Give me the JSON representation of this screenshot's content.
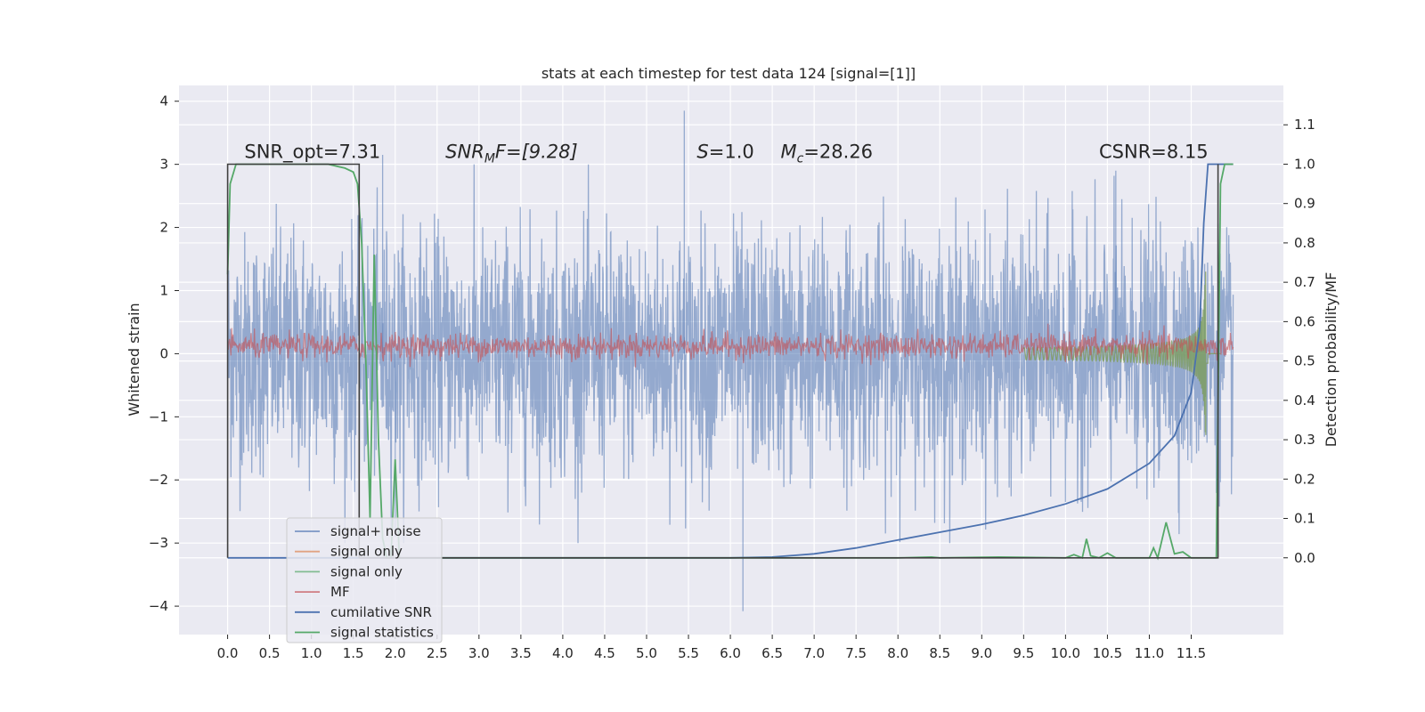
{
  "chart_data": {
    "type": "line",
    "title": "stats at each timestep for test data 124 [signal=[1]]",
    "xlabel": "",
    "ylabel": "Whitened strain",
    "ylabel_right": "Detection probability/MF",
    "xlim": [
      -0.58,
      12.6
    ],
    "ylim": [
      -4.45,
      4.25
    ],
    "ylim_right": [
      -0.195,
      1.2
    ],
    "x_ticks": [
      "0.0",
      "0.5",
      "1.0",
      "1.5",
      "2.0",
      "2.5",
      "3.0",
      "3.5",
      "4.0",
      "4.5",
      "5.0",
      "5.5",
      "6.0",
      "6.5",
      "7.0",
      "7.5",
      "8.0",
      "8.5",
      "9.0",
      "9.5",
      "10.0",
      "10.5",
      "11.0",
      "11.5"
    ],
    "y_ticks_left": [
      "4",
      "3",
      "2",
      "1",
      "0",
      "−1",
      "−2",
      "−3",
      "−4"
    ],
    "y_ticks_right": [
      "1.1",
      "1.0",
      "0.9",
      "0.8",
      "0.7",
      "0.6",
      "0.5",
      "0.4",
      "0.3",
      "0.2",
      "0.1",
      "0.0"
    ],
    "grid": true,
    "legend_position": "lower-left",
    "annotations": {
      "snr_opt": {
        "text": "SNR_opt=7.31",
        "x": 0.2,
        "y": 3.1
      },
      "snr_mf_prefix": "SNR",
      "snr_mf_sub": "M",
      "snr_mf_suffix": "F=[9.28]",
      "snr_mf_pos": {
        "x": 2.6,
        "y": 3.1
      },
      "s_var": "S",
      "s_value": "=1.0",
      "s_pos": {
        "x": 5.6,
        "y": 3.1
      },
      "mc_var": "M",
      "mc_sub": "c",
      "mc_value": "=28.26",
      "mc_pos": {
        "x": 6.6,
        "y": 3.1
      },
      "csnr": {
        "text": "CSNR=8.15",
        "x": 10.4,
        "y": 3.1
      }
    },
    "series": [
      {
        "name": "signal+ noise",
        "axis": "left",
        "color": "#4c72b0",
        "opacity": 0.55,
        "style": "noise",
        "x_range": [
          0,
          12.0
        ],
        "peaks": [
          [
            5.45,
            3.85
          ],
          [
            6.15,
            -4.08
          ],
          [
            1.85,
            3.15
          ],
          [
            2.0,
            -2.9
          ],
          [
            10.6,
            2.9
          ]
        ]
      },
      {
        "name": "signal only",
        "axis": "left",
        "color": "#dd8452",
        "opacity": 0.6,
        "style": "chirp"
      },
      {
        "name": "signal only",
        "axis": "left",
        "color": "#55a868",
        "opacity": 0.6,
        "style": "chirp"
      },
      {
        "name": "MF",
        "axis": "left",
        "color": "#c44e52",
        "opacity": 0.6,
        "style": "band",
        "x_range": [
          0,
          12.0
        ],
        "center": 0.12,
        "amplitude": 0.2
      },
      {
        "name": "cumilative SNR",
        "axis": "right",
        "color": "#4c72b0",
        "x": [
          0,
          6.0,
          6.5,
          7.0,
          7.5,
          8.0,
          8.5,
          9.0,
          9.5,
          10.0,
          10.5,
          11.0,
          11.3,
          11.5,
          11.6,
          11.65,
          11.7,
          12.0
        ],
        "values": [
          0,
          0,
          0.002,
          0.01,
          0.025,
          0.045,
          0.065,
          0.085,
          0.108,
          0.137,
          0.175,
          0.24,
          0.31,
          0.42,
          0.58,
          0.85,
          1.0,
          1.0
        ]
      },
      {
        "name": "signal statistics",
        "axis": "right",
        "color": "#55a868",
        "x": [
          0,
          0.03,
          0.1,
          0.4,
          0.8,
          1.2,
          1.4,
          1.5,
          1.55,
          1.6,
          1.65,
          1.7,
          1.75,
          1.8,
          1.85,
          1.9,
          1.95,
          2.0,
          2.05,
          2.1,
          2.2,
          3.0,
          6.0,
          8.0,
          8.4,
          8.5,
          9.2,
          10.0,
          10.1,
          10.2,
          10.25,
          10.3,
          10.4,
          10.5,
          10.6,
          10.8,
          11.0,
          11.05,
          11.1,
          11.2,
          11.3,
          11.4,
          11.5,
          11.6,
          11.8,
          11.85,
          11.9,
          12.0
        ],
        "values": [
          0.72,
          0.95,
          1.0,
          1.0,
          1.0,
          1.0,
          0.99,
          0.98,
          0.95,
          0.8,
          0.5,
          0.1,
          0.77,
          0.3,
          0.05,
          0.0,
          0.0,
          0.25,
          0.0,
          0.0,
          0.0,
          0.0,
          0.0,
          0.0,
          0.002,
          0.0,
          0.002,
          0.0,
          0.008,
          0.0,
          0.048,
          0.005,
          0.0,
          0.012,
          0.0,
          0.0,
          0.0,
          0.025,
          0.0,
          0.09,
          0.01,
          0.015,
          0.0,
          0.0,
          0.0,
          0.95,
          1.0,
          1.0
        ]
      },
      {
        "name": "",
        "axis": "right",
        "color": "#404040",
        "style": "window",
        "x": [
          0,
          0,
          1.57,
          1.57,
          11.82,
          11.82
        ],
        "values": [
          0,
          1.0,
          1.0,
          0.0,
          0.0,
          1.0
        ]
      }
    ]
  }
}
